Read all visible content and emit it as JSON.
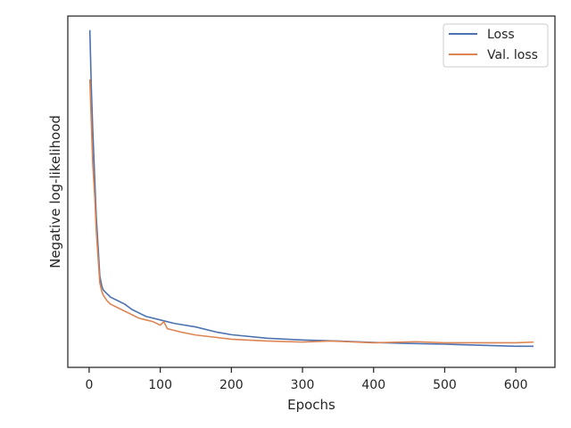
{
  "chart_data": {
    "type": "line",
    "xlabel": "Epochs",
    "ylabel": "Negative log-likelihood",
    "xlim": [
      -30,
      655
    ],
    "ylim": [
      0.0,
      1.0
    ],
    "x_ticks": [
      0,
      100,
      200,
      300,
      400,
      500,
      600
    ],
    "y_ticks_shown": false,
    "grid": false,
    "legend_position": "top-right",
    "series": [
      {
        "name": "Loss",
        "color": "#4C72B0",
        "x": [
          1,
          3,
          5,
          8,
          10,
          13,
          15,
          18,
          20,
          25,
          30,
          35,
          40,
          50,
          60,
          70,
          80,
          100,
          120,
          150,
          180,
          200,
          250,
          300,
          350,
          400,
          450,
          500,
          550,
          600,
          625
        ],
        "y": [
          0.96,
          0.8,
          0.68,
          0.53,
          0.43,
          0.33,
          0.26,
          0.23,
          0.22,
          0.21,
          0.2,
          0.195,
          0.19,
          0.18,
          0.165,
          0.155,
          0.145,
          0.135,
          0.125,
          0.115,
          0.1,
          0.093,
          0.083,
          0.078,
          0.075,
          0.071,
          0.068,
          0.066,
          0.063,
          0.06,
          0.06
        ]
      },
      {
        "name": "Val. loss",
        "color": "#DD8452",
        "x": [
          1,
          3,
          5,
          8,
          10,
          13,
          15,
          18,
          20,
          25,
          30,
          40,
          50,
          60,
          70,
          80,
          90,
          100,
          105,
          110,
          130,
          150,
          180,
          200,
          250,
          300,
          340,
          400,
          460,
          500,
          550,
          600,
          625
        ],
        "y": [
          0.82,
          0.7,
          0.58,
          0.48,
          0.39,
          0.3,
          0.24,
          0.215,
          0.205,
          0.19,
          0.18,
          0.17,
          0.16,
          0.15,
          0.14,
          0.135,
          0.13,
          0.12,
          0.13,
          0.11,
          0.1,
          0.092,
          0.085,
          0.08,
          0.075,
          0.072,
          0.075,
          0.07,
          0.073,
          0.07,
          0.07,
          0.07,
          0.072
        ]
      }
    ]
  }
}
